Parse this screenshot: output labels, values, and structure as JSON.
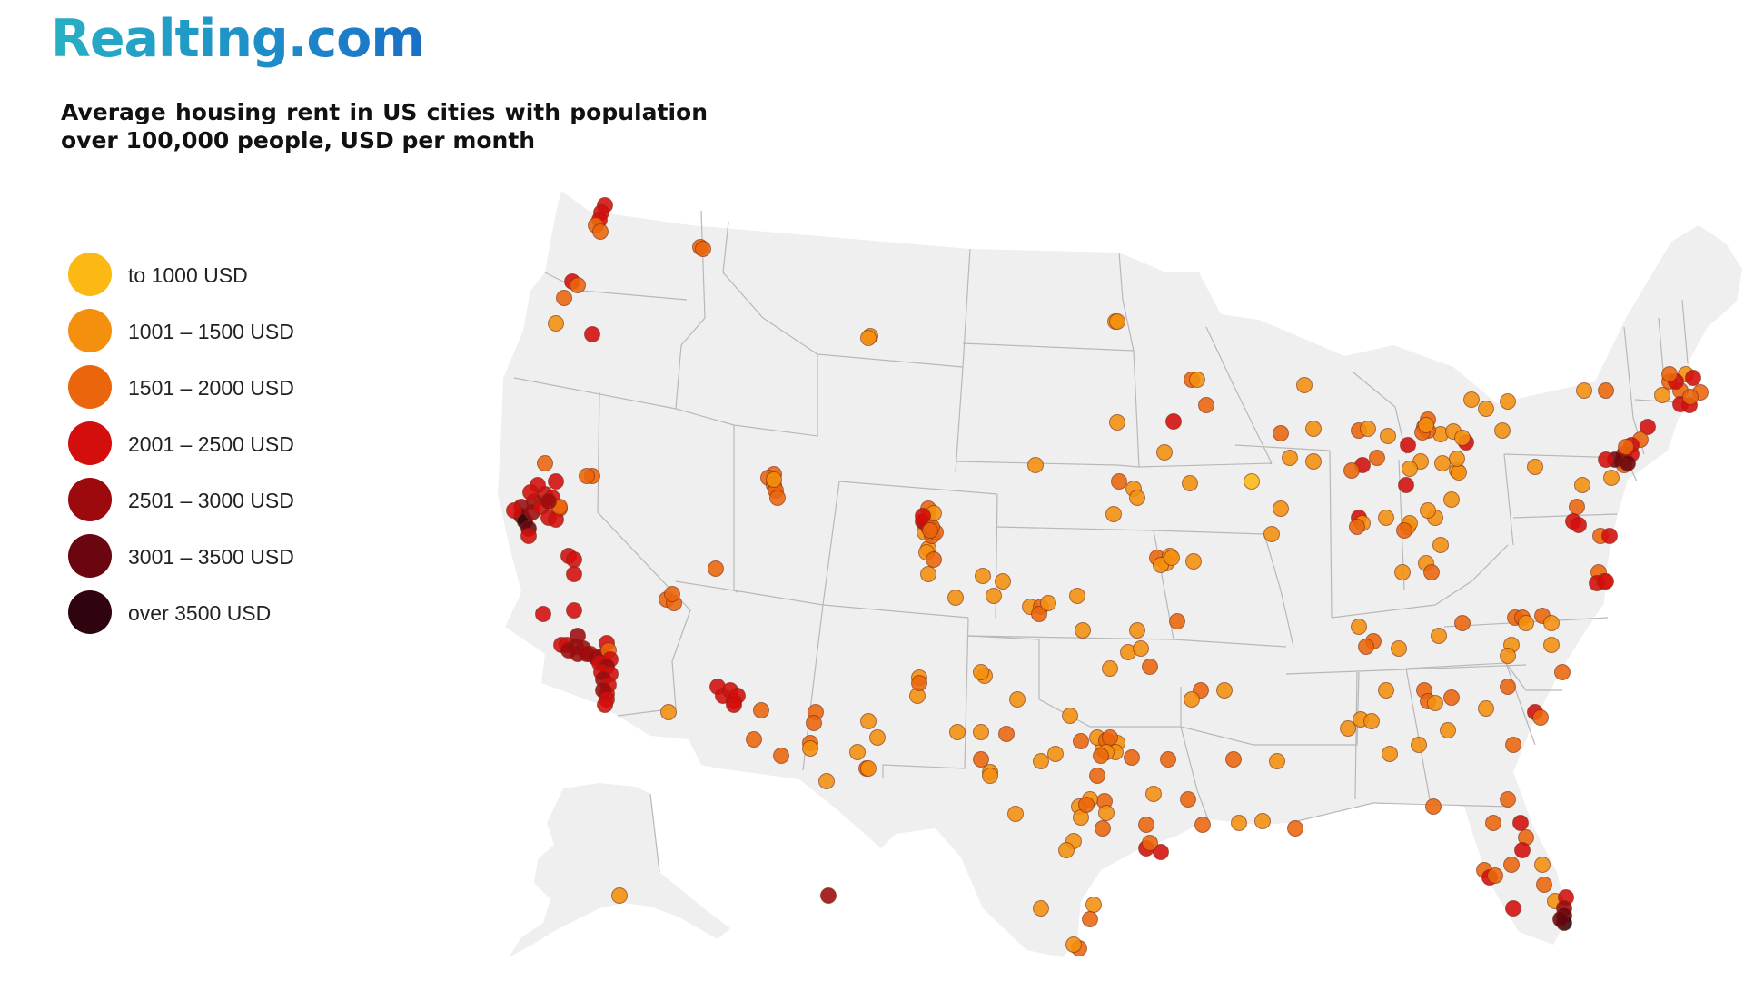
{
  "brand": {
    "logo_text": "Realting.com"
  },
  "title": "Average housing rent in US cities with population over 100,000 people, USD per month",
  "legend": [
    {
      "label": "to 1000 USD",
      "color": "#fdb913"
    },
    {
      "label": "1001 – 1500 USD",
      "color": "#f4900e"
    },
    {
      "label": "1501 – 2000 USD",
      "color": "#ea650b"
    },
    {
      "label": "2001 – 2500 USD",
      "color": "#d40d0d"
    },
    {
      "label": "2501 – 3000 USD",
      "color": "#9c0a0e"
    },
    {
      "label": "3001 – 3500 USD",
      "color": "#6a0610"
    },
    {
      "label": "over 3500 USD",
      "color": "#30040e"
    }
  ],
  "map": {
    "land_color": "#efefef",
    "border_color": "#b8b8b8",
    "dot_outline": "#7a2a10"
  }
}
